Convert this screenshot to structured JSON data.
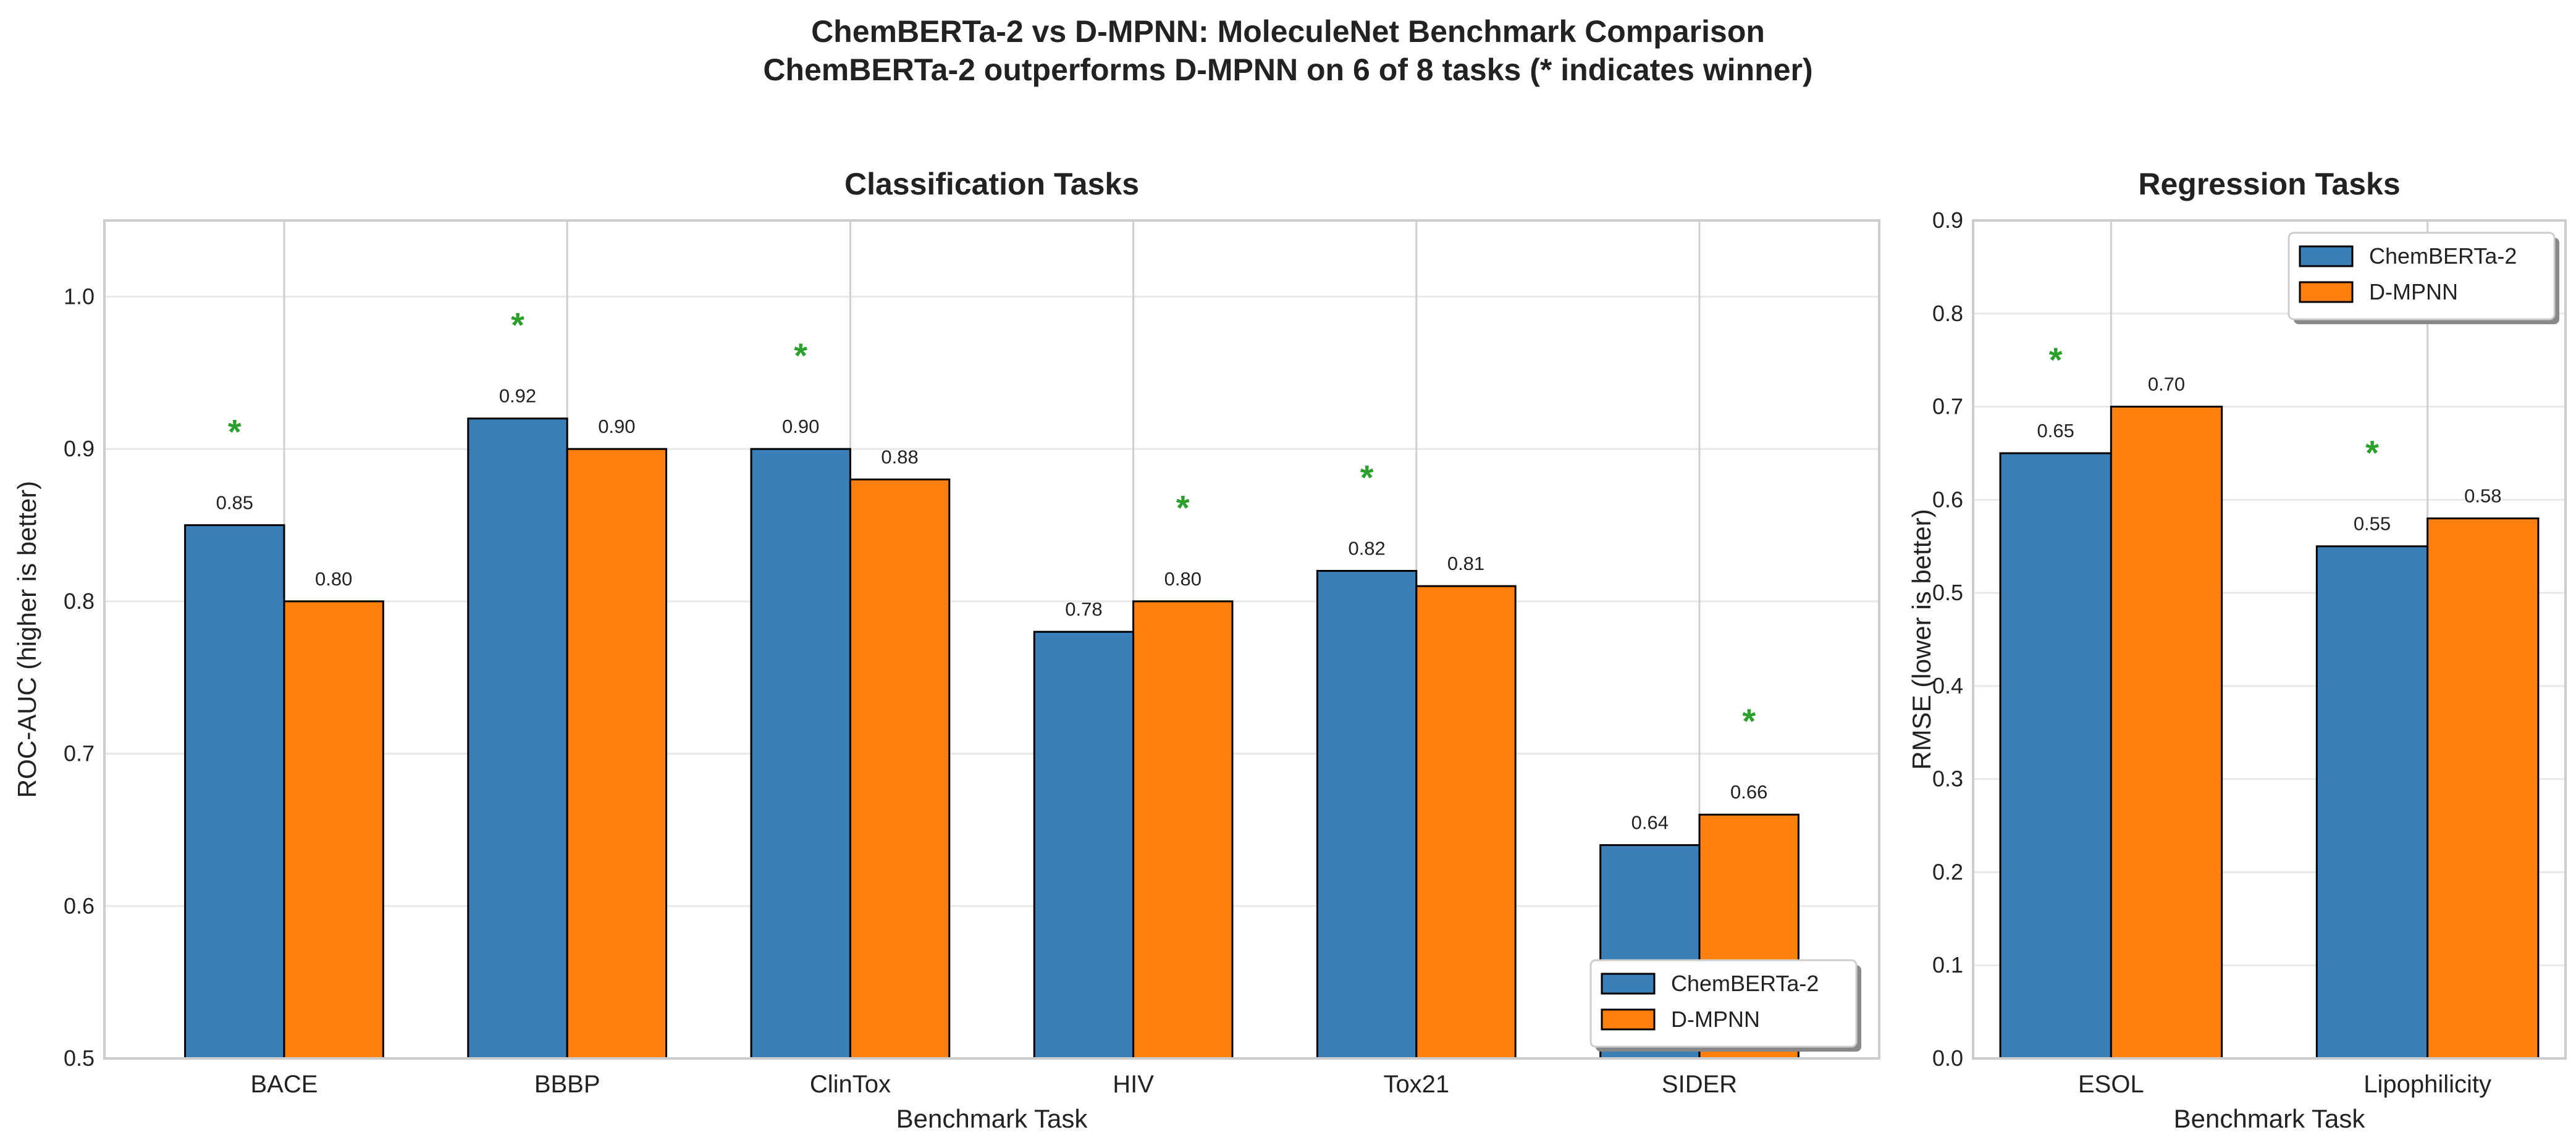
{
  "title": "ChemBERTa-2 vs D-MPNN: MoleculeNet Benchmark Comparison",
  "subtitle": "ChemBERTa-2 outperforms D-MPNN on 6 of 8 tasks (* indicates winner)",
  "colors": {
    "ChemBERTa-2": "#3a7fb8",
    "D-MPNN": "#ff7f0e",
    "winner_star": "#2ca02c",
    "grid": "#e8e8e8",
    "spine": "#cccccc"
  },
  "chart_data": [
    {
      "type": "bar",
      "title": "Classification Tasks",
      "xlabel": "Benchmark Task",
      "ylabel": "ROC-AUC (higher is better)",
      "categories": [
        "BACE",
        "BBBP",
        "ClinTox",
        "HIV",
        "Tox21",
        "SIDER"
      ],
      "series": [
        {
          "name": "ChemBERTa-2",
          "values": [
            0.85,
            0.92,
            0.9,
            0.78,
            0.82,
            0.64
          ]
        },
        {
          "name": "D-MPNN",
          "values": [
            0.8,
            0.9,
            0.88,
            0.8,
            0.81,
            0.66
          ]
        }
      ],
      "data_labels": [
        [
          "0.85",
          "0.92",
          "0.90",
          "0.78",
          "0.82",
          "0.64"
        ],
        [
          "0.80",
          "0.90",
          "0.88",
          "0.80",
          "0.81",
          "0.66"
        ]
      ],
      "winners": [
        "ChemBERTa-2",
        "ChemBERTa-2",
        "ChemBERTa-2",
        "D-MPNN",
        "ChemBERTa-2",
        "D-MPNN"
      ],
      "winner_marker": "*",
      "ylim": [
        0.5,
        1.05
      ],
      "yticks": [
        "0.5",
        "0.6",
        "0.7",
        "0.8",
        "0.9",
        "1.0"
      ],
      "grid": true,
      "legend": "lower-right"
    },
    {
      "type": "bar",
      "title": "Regression Tasks",
      "xlabel": "Benchmark Task",
      "ylabel": "RMSE (lower is better)",
      "categories": [
        "ESOL",
        "Lipophilicity"
      ],
      "series": [
        {
          "name": "ChemBERTa-2",
          "values": [
            0.65,
            0.55
          ]
        },
        {
          "name": "D-MPNN",
          "values": [
            0.7,
            0.58
          ]
        }
      ],
      "data_labels": [
        [
          "0.65",
          "0.55"
        ],
        [
          "0.70",
          "0.58"
        ]
      ],
      "winners": [
        "ChemBERTa-2",
        "ChemBERTa-2"
      ],
      "winner_marker": "*",
      "ylim": [
        0.0,
        0.9
      ],
      "yticks": [
        "0.0",
        "0.1",
        "0.2",
        "0.3",
        "0.4",
        "0.5",
        "0.6",
        "0.7",
        "0.8",
        "0.9"
      ],
      "grid": true,
      "legend": "upper-right"
    }
  ]
}
